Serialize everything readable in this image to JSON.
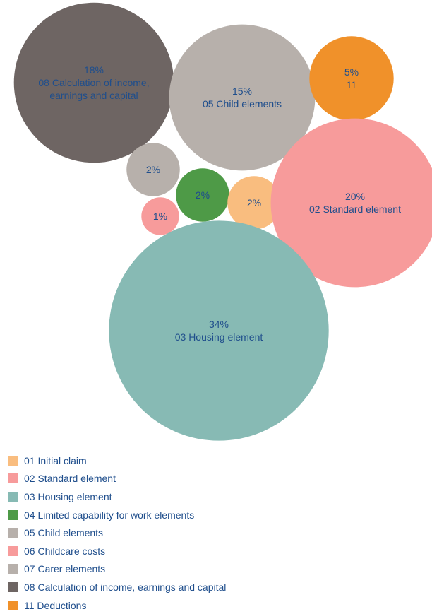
{
  "chart_data": {
    "type": "bubble",
    "title": "",
    "bubbles": [
      {
        "category": "08 Calculation of income, earnings and capital",
        "value": 18,
        "value_label": "18%",
        "name_label": "08 Calculation of income, earnings and capital",
        "color": "#6e6563"
      },
      {
        "category": "05 Child elements",
        "value": 15,
        "value_label": "15%",
        "name_label": "05 Child elements",
        "color": "#b7b0ab"
      },
      {
        "category": "11 Deductions",
        "value": 5,
        "value_label": "5%",
        "name_label": "11",
        "color": "#f0912a"
      },
      {
        "category": "07 Carer elements",
        "value": 2,
        "value_label": "2%",
        "name_label": "",
        "color": "#b7b0ab"
      },
      {
        "category": "04 Limited capability for work elements",
        "value": 2,
        "value_label": "2%",
        "name_label": "",
        "color": "#4e9a47"
      },
      {
        "category": "01 Initial claim",
        "value": 2,
        "value_label": "2%",
        "name_label": "",
        "color": "#f9bd7f"
      },
      {
        "category": "06 Childcare costs",
        "value": 1,
        "value_label": "1%",
        "name_label": "",
        "color": "#f79b9b"
      },
      {
        "category": "02 Standard element",
        "value": 20,
        "value_label": "20%",
        "name_label": "02 Standard element",
        "color": "#f79b9b"
      },
      {
        "category": "03 Housing element",
        "value": 34,
        "value_label": "34%",
        "name_label": "03 Housing element",
        "color": "#87bab4"
      }
    ],
    "legend": {
      "position": "bottom-left",
      "items": [
        {
          "label": "01 Initial claim",
          "color": "#f9bd7f"
        },
        {
          "label": "02 Standard element",
          "color": "#f79b9b"
        },
        {
          "label": "03 Housing element",
          "color": "#87bab4"
        },
        {
          "label": "04 Limited capability for work elements",
          "color": "#4e9a47"
        },
        {
          "label": "05 Child elements",
          "color": "#b7b0ab"
        },
        {
          "label": "06 Childcare costs",
          "color": "#f79b9b"
        },
        {
          "label": "07 Carer elements",
          "color": "#b7b0ab"
        },
        {
          "label": "08 Calculation of income, earnings and capital",
          "color": "#6e6563"
        },
        {
          "label": "11 Deductions",
          "color": "#f0912a"
        }
      ]
    }
  }
}
